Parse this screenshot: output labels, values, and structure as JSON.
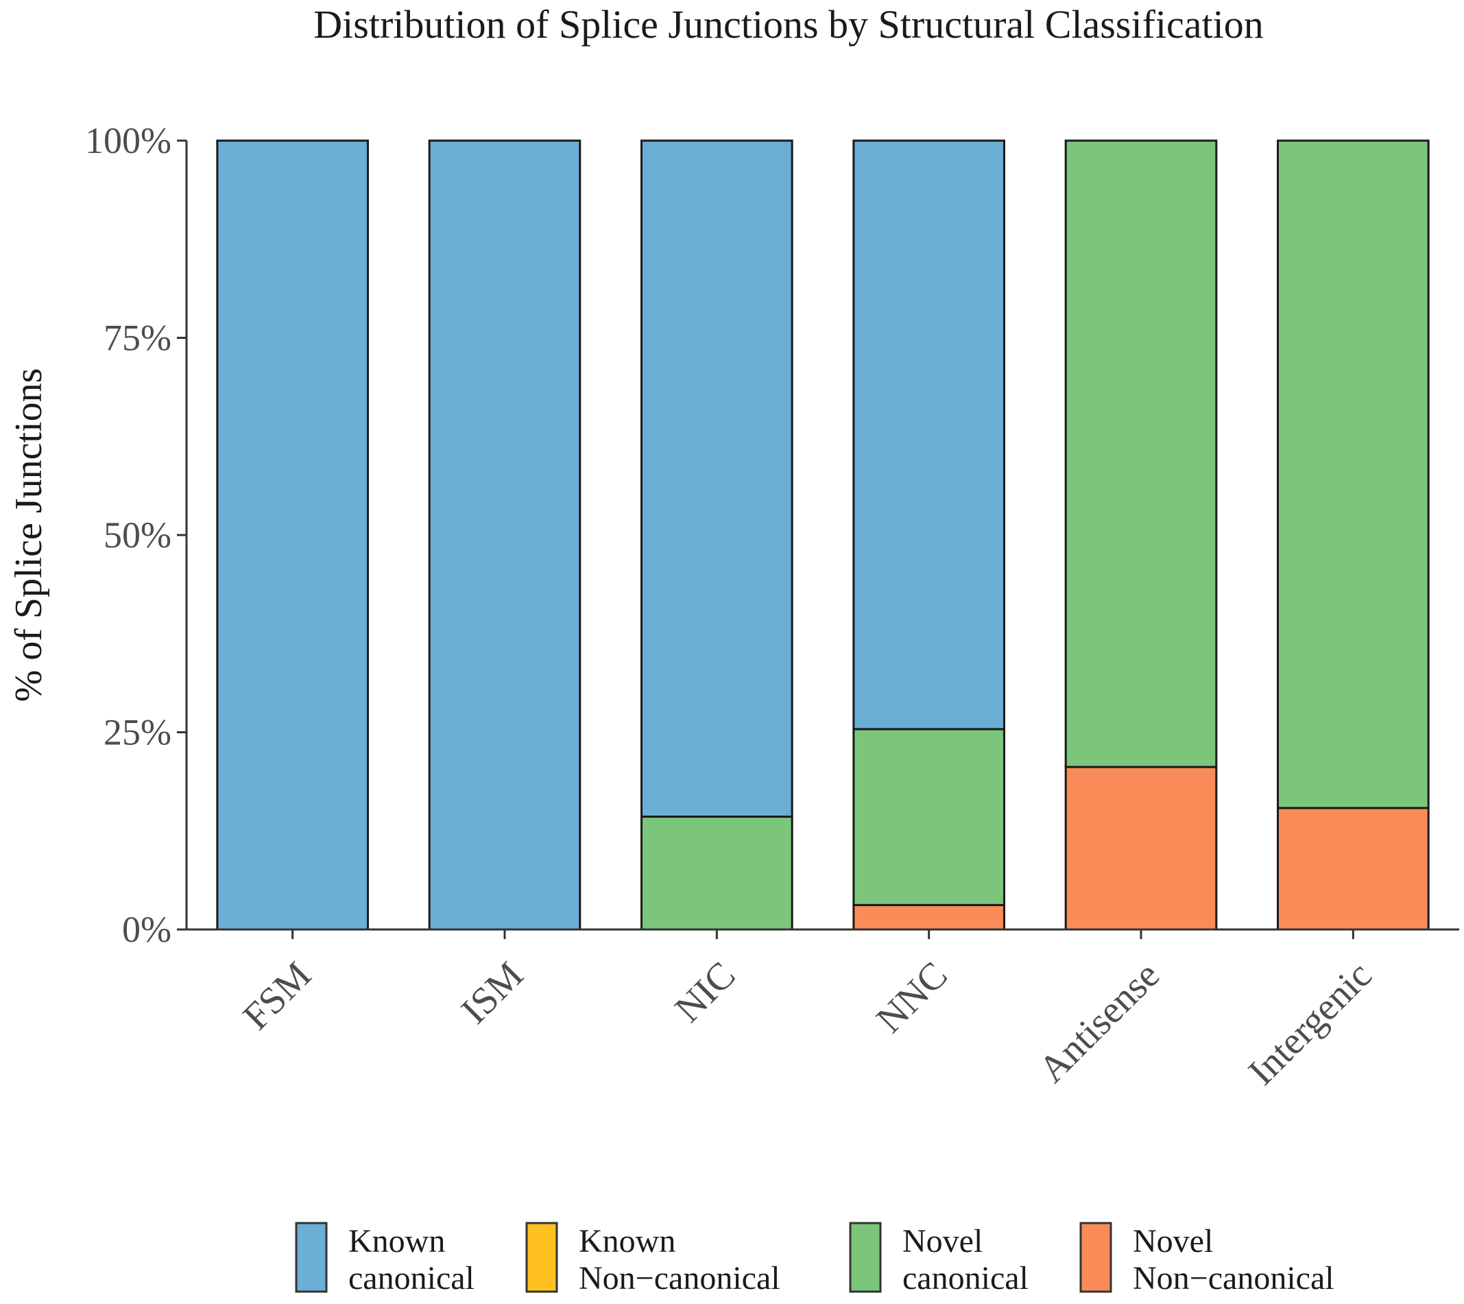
{
  "chart_data": {
    "type": "bar",
    "stacked": true,
    "title": "Distribution of Splice Junctions by Structural Classification",
    "xlabel": "",
    "ylabel": "% of Splice Junctions",
    "ylim": [
      0,
      100
    ],
    "yticks": [
      "0%",
      "25%",
      "50%",
      "75%",
      "100%"
    ],
    "categories": [
      "FSM",
      "ISM",
      "NIC",
      "NNC",
      "Antisense",
      "Intergenic"
    ],
    "series": [
      {
        "name": "Known canonical",
        "legend_lines": [
          "Known",
          "canonical"
        ],
        "color": "#6BAED6",
        "values": [
          100,
          100,
          85.7,
          74.6,
          0,
          0
        ]
      },
      {
        "name": "Known Non-canonical",
        "legend_lines": [
          "Known",
          "Non−canonical"
        ],
        "color": "#FDC01F",
        "values": [
          0,
          0,
          0,
          0,
          0,
          0
        ]
      },
      {
        "name": "Novel canonical",
        "legend_lines": [
          "Novel",
          "canonical"
        ],
        "color": "#7BC67B",
        "values": [
          0,
          0,
          14.3,
          22.3,
          79.4,
          84.6
        ]
      },
      {
        "name": "Novel Non-canonical",
        "legend_lines": [
          "Novel",
          "Non−canonical"
        ],
        "color": "#F98C58",
        "values": [
          0,
          0,
          0,
          3.1,
          20.6,
          15.4
        ]
      }
    ],
    "legend_position": "bottom",
    "grid": false
  }
}
